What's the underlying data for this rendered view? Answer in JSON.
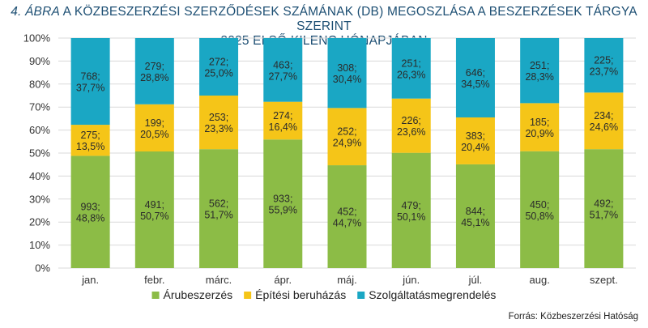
{
  "title": {
    "fig_num": "4. ÁBRA",
    "line1_rest": " A KÖZBESZERZÉSI SZERZŐDÉSEK SZÁMÁNAK (DB) MEGOSZLÁSA A BESZERZÉSEK TÁRGYA SZERINT",
    "line2": "2025 ELSŐ KILENC HÓNAPJÁBAN"
  },
  "source": "Forrás: Közbeszerzési Hatóság",
  "colors": {
    "arubeszerzes": "#8cbc46",
    "epitesi": "#f5c518",
    "szolgaltatas": "#1aa7c4",
    "grid": "#d9d9d9"
  },
  "chart_data": {
    "type": "bar",
    "stacked": true,
    "percent": true,
    "categories": [
      "jan.",
      "febr.",
      "márc.",
      "ápr.",
      "máj.",
      "jún.",
      "júl.",
      "aug.",
      "szept."
    ],
    "y_ticks": [
      "0%",
      "10%",
      "20%",
      "30%",
      "40%",
      "50%",
      "60%",
      "70%",
      "80%",
      "90%",
      "100%"
    ],
    "ylim": [
      0,
      100
    ],
    "legend_position": "bottom",
    "series": [
      {
        "name": "Árubeszerzés",
        "color_key": "arubeszerzes",
        "counts": [
          993,
          491,
          562,
          933,
          452,
          479,
          844,
          450,
          492
        ],
        "percents": [
          48.8,
          50.7,
          51.7,
          55.9,
          44.7,
          50.1,
          45.1,
          50.8,
          51.7
        ],
        "labels": [
          "993;\n48,8%",
          "491;\n50,7%",
          "562;\n51,7%",
          "933;\n55,9%",
          "452;\n44,7%",
          "479;\n50,1%",
          "844;\n45,1%",
          "450;\n50,8%",
          "492;\n51,7%"
        ]
      },
      {
        "name": "Építési beruházás",
        "color_key": "epitesi",
        "counts": [
          275,
          199,
          253,
          274,
          252,
          226,
          383,
          185,
          234
        ],
        "percents": [
          13.5,
          20.5,
          23.3,
          16.4,
          24.9,
          23.6,
          20.4,
          20.9,
          24.6
        ],
        "labels": [
          "275;\n13,5%",
          "199;\n20,5%",
          "253;\n23,3%",
          "274;\n16,4%",
          "252;\n24,9%",
          "226;\n23,6%",
          "383;\n20,4%",
          "185;\n20,9%",
          "234;\n24,6%"
        ]
      },
      {
        "name": "Szolgáltatásmegrendelés",
        "color_key": "szolgaltatas",
        "counts": [
          768,
          279,
          272,
          463,
          308,
          251,
          646,
          251,
          225
        ],
        "percents": [
          37.7,
          28.8,
          25.0,
          27.7,
          30.4,
          26.3,
          34.5,
          28.3,
          23.7
        ],
        "labels": [
          "768;\n37,7%",
          "279;\n28,8%",
          "272;\n25,0%",
          "463;\n27,7%",
          "308;\n30,4%",
          "251;\n26,3%",
          "646;\n34,5%",
          "251;\n28,3%",
          "225;\n23,7%"
        ]
      }
    ]
  }
}
